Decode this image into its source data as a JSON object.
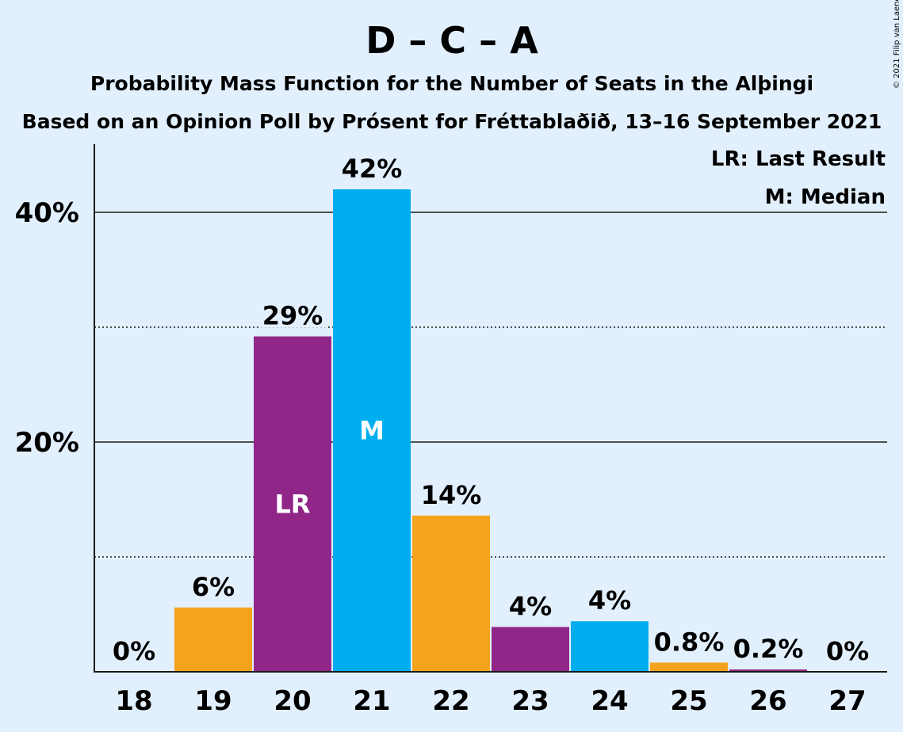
{
  "chart_data": {
    "type": "bar",
    "title": "D – C – A",
    "subtitle": "Probability Mass Function for the Number of Seats in the Alþingi",
    "subtitle2": "Based on an Opinion Poll by Prósent for Fréttablaðið, 13–16 September 2021",
    "copyright": "© 2021 Filip van Laenen",
    "categories": [
      "18",
      "19",
      "20",
      "21",
      "22",
      "23",
      "24",
      "25",
      "26",
      "27"
    ],
    "values": [
      0,
      5.6,
      29.2,
      42.0,
      13.6,
      3.9,
      4.4,
      0.8,
      0.2,
      0
    ],
    "data_labels": [
      "0%",
      "6%",
      "29%",
      "42%",
      "14%",
      "4%",
      "4%",
      "0.8%",
      "0.2%",
      "0%"
    ],
    "bar_colors": [
      "#f5a31d",
      "#f5a31d",
      "#902788",
      "#00aeef",
      "#f5a31d",
      "#902788",
      "#00aeef",
      "#f5a31d",
      "#902788",
      "#00aeef"
    ],
    "bar_markers": {
      "20": "LR",
      "21": "M"
    },
    "y_ticks": [
      {
        "value": 20,
        "label": "20%"
      },
      {
        "value": 40,
        "label": "40%"
      }
    ],
    "minor_gridlines": [
      10,
      30
    ],
    "ylim": [
      0,
      46
    ],
    "legend": [
      "LR: Last Result",
      "M: Median"
    ],
    "legend_position": "top-right",
    "colors": {
      "background": "#e2f0fe",
      "text": "#1a1a1a",
      "marker_text": "#ffffff"
    }
  }
}
